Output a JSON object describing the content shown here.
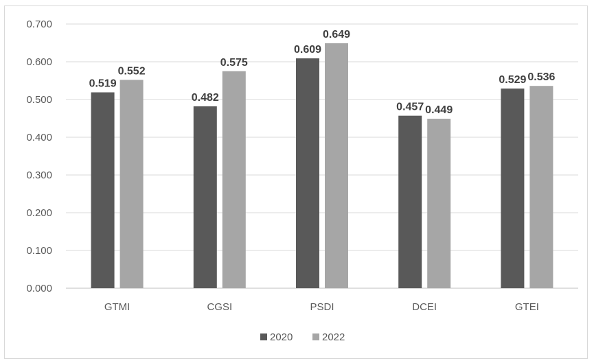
{
  "chart_data": {
    "type": "bar",
    "categories": [
      "GTMI",
      "CGSI",
      "PSDI",
      "DCEI",
      "GTEI"
    ],
    "series": [
      {
        "name": "2020",
        "values": [
          0.519,
          0.482,
          0.609,
          0.457,
          0.529
        ],
        "color": "#595959"
      },
      {
        "name": "2022",
        "values": [
          0.552,
          0.575,
          0.649,
          0.449,
          0.536
        ],
        "color": "#a6a6a6"
      }
    ],
    "data_labels": [
      [
        "0.519",
        "0.482",
        "0.609",
        "0.457",
        "0.529"
      ],
      [
        "0.552",
        "0.575",
        "0.649",
        "0.449",
        "0.536"
      ]
    ],
    "title": "",
    "xlabel": "",
    "ylabel": "",
    "ylim": [
      0,
      0.7
    ],
    "yticks": [
      "0.000",
      "0.100",
      "0.200",
      "0.300",
      "0.400",
      "0.500",
      "0.600",
      "0.700"
    ],
    "grid": true,
    "gridline_color": "#d9d9d9",
    "axis_color": "#bfbfbf",
    "legend": "bottom-center"
  }
}
